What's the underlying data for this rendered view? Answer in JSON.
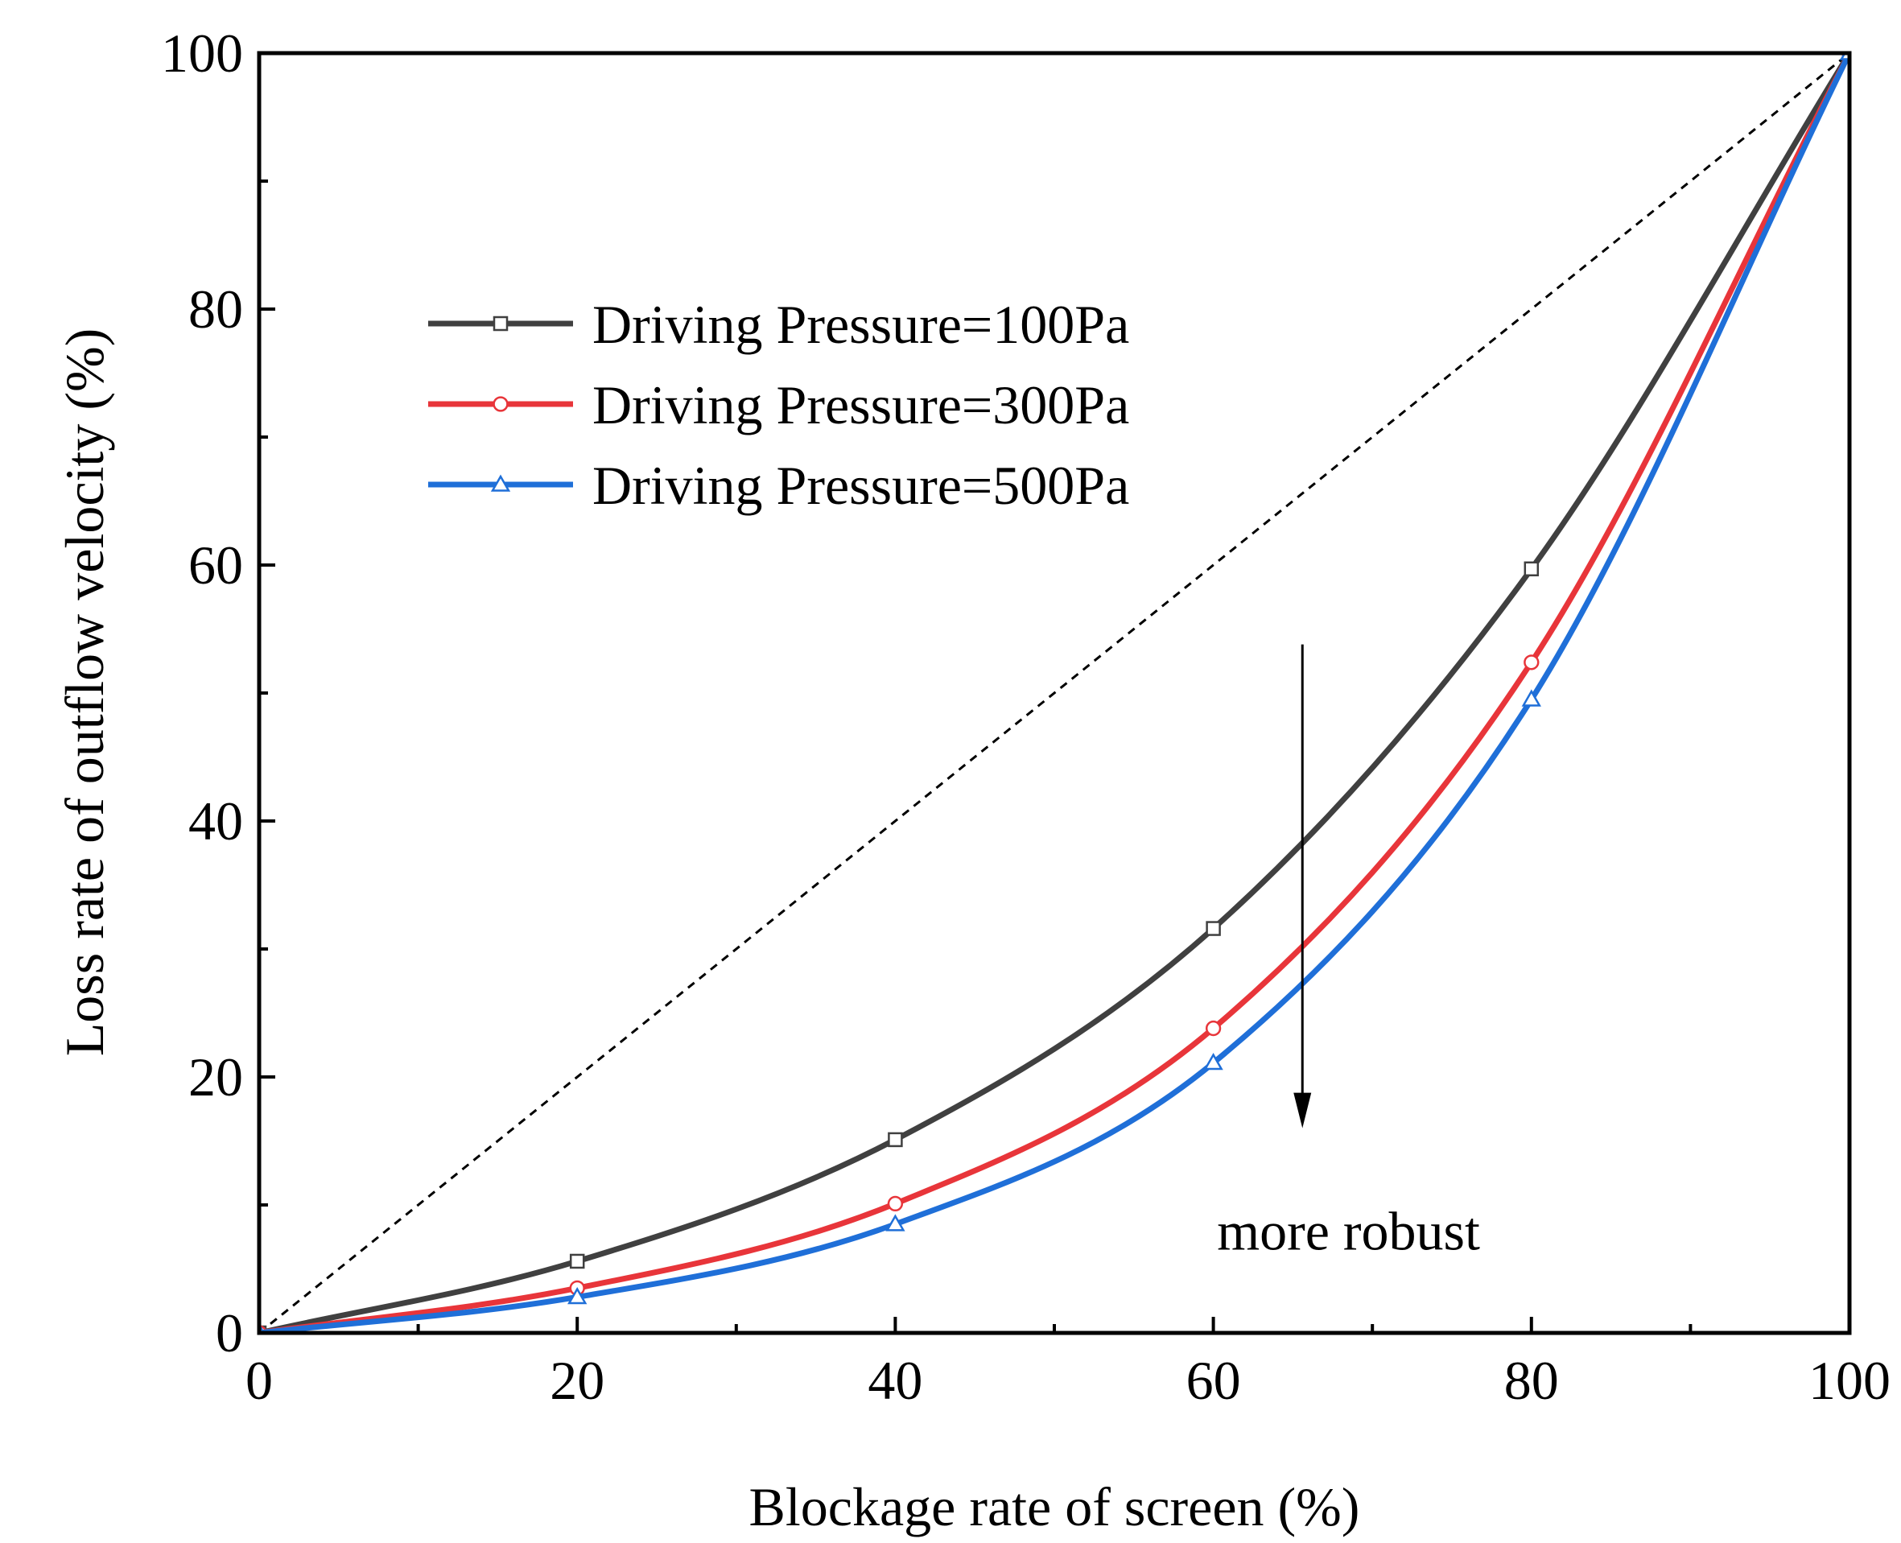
{
  "chart_data": {
    "type": "line",
    "xlabel": "Blockage rate of screen  (%)",
    "ylabel": "Loss rate of outflow velocity (%)",
    "xlim": [
      0,
      100
    ],
    "ylim": [
      0,
      100
    ],
    "xticks": [
      0,
      20,
      40,
      60,
      80,
      100
    ],
    "yticks": [
      0,
      20,
      40,
      60,
      80,
      100
    ],
    "grid": false,
    "legend_position": "top-left",
    "x": [
      0,
      20,
      40,
      60,
      80,
      100
    ],
    "series": [
      {
        "name": "Driving Pressure=100Pa",
        "values": [
          0,
          5.6,
          15.1,
          31.6,
          59.7,
          100
        ],
        "color": "#404040",
        "marker": "square"
      },
      {
        "name": "Driving Pressure=300Pa",
        "values": [
          0,
          3.5,
          10.1,
          23.8,
          52.4,
          100
        ],
        "color": "#e8353a",
        "marker": "circle"
      },
      {
        "name": "Driving Pressure=500Pa",
        "values": [
          0,
          2.8,
          8.5,
          21.1,
          49.5,
          100
        ],
        "color": "#1f6fd8",
        "marker": "triangle"
      }
    ],
    "reference_line": {
      "from": [
        0,
        0
      ],
      "to": [
        100,
        100
      ],
      "style": "dashed"
    },
    "annotation": {
      "text": "more robust",
      "arrow_x": 65.6,
      "arrow_from_y": 53.8,
      "arrow_to_y": 16
    }
  }
}
